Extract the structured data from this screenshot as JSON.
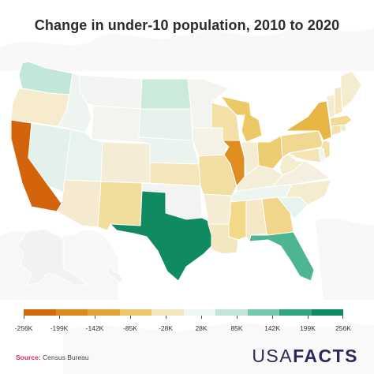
{
  "title": "Change in under-10 population, 2010 to 2020",
  "legend": {
    "ticks": [
      "-256K",
      "-199K",
      "-142K",
      "-85K",
      "-28K",
      "28K",
      "85K",
      "142K",
      "199K",
      "256K"
    ],
    "colors": [
      "#d06a0c",
      "#dc8a1c",
      "#e4a33a",
      "#edc66a",
      "#f4e6bc",
      "#eef6f2",
      "#bfe6d6",
      "#76c9a8",
      "#2fa67c",
      "#0f8a60"
    ]
  },
  "source": {
    "label": "Source:",
    "text": "Census Bureau"
  },
  "logo": {
    "part1": "USA",
    "part2": "FACTS"
  },
  "map_data": {
    "metric": "Change in under-10 population, 2010 to 2020",
    "scale_min": -256000,
    "scale_max": 256000,
    "color_scale": "diverging orange (decline) to green (growth)",
    "states": [
      {
        "state": "Washington",
        "color": "#c2e7d8"
      },
      {
        "state": "Oregon",
        "color": "#f6ebcd"
      },
      {
        "state": "California",
        "color": "#d4640c"
      },
      {
        "state": "Nevada",
        "color": "#e2f1ea"
      },
      {
        "state": "Idaho",
        "color": "#eef4ef"
      },
      {
        "state": "Montana",
        "color": "#f2f5f2"
      },
      {
        "state": "Wyoming",
        "color": "#f3f3ef"
      },
      {
        "state": "Utah",
        "color": "#e9f3ee"
      },
      {
        "state": "Arizona",
        "color": "#f5ead0"
      },
      {
        "state": "Colorado",
        "color": "#f4ecd4"
      },
      {
        "state": "New Mexico",
        "color": "#f1dd9c"
      },
      {
        "state": "North Dakota",
        "color": "#cbead9"
      },
      {
        "state": "South Dakota",
        "color": "#e7f2ec"
      },
      {
        "state": "Nebraska",
        "color": "#ebf3ee"
      },
      {
        "state": "Kansas",
        "color": "#f4e6bb"
      },
      {
        "state": "Oklahoma",
        "color": "#f2f4f1"
      },
      {
        "state": "Texas",
        "color": "#108a60"
      },
      {
        "state": "Minnesota",
        "color": "#f3f3f0"
      },
      {
        "state": "Iowa",
        "color": "#f4f1e6"
      },
      {
        "state": "Missouri",
        "color": "#f1dea2"
      },
      {
        "state": "Arkansas",
        "color": "#f5ecd3"
      },
      {
        "state": "Louisiana",
        "color": "#f3e7c2"
      },
      {
        "state": "Wisconsin",
        "color": "#f3e1a8"
      },
      {
        "state": "Illinois",
        "color": "#df8d1d"
      },
      {
        "state": "Michigan",
        "color": "#ecc966"
      },
      {
        "state": "Indiana",
        "color": "#f5ecd2"
      },
      {
        "state": "Ohio",
        "color": "#eecd72"
      },
      {
        "state": "Kentucky",
        "color": "#f4edd7"
      },
      {
        "state": "Tennessee",
        "color": "#eef5f1"
      },
      {
        "state": "Mississippi",
        "color": "#f2d989"
      },
      {
        "state": "Alabama",
        "color": "#f4e8c6"
      },
      {
        "state": "Georgia",
        "color": "#f0d58a"
      },
      {
        "state": "Florida",
        "color": "#4db58f"
      },
      {
        "state": "South Carolina",
        "color": "#e7f3ed"
      },
      {
        "state": "North Carolina",
        "color": "#f5ebcf"
      },
      {
        "state": "Virginia",
        "color": "#f4efde"
      },
      {
        "state": "West Virginia",
        "color": "#f5ecd0"
      },
      {
        "state": "Pennsylvania",
        "color": "#f1d890"
      },
      {
        "state": "New York",
        "color": "#e8b443"
      },
      {
        "state": "New Jersey",
        "color": "#f3dea3"
      },
      {
        "state": "Maryland",
        "color": "#f4e5b8"
      },
      {
        "state": "Delaware",
        "color": "#f3f3f0"
      },
      {
        "state": "Connecticut",
        "color": "#f3e2ac"
      },
      {
        "state": "Rhode Island",
        "color": "#f4e8c4"
      },
      {
        "state": "Massachusetts",
        "color": "#f1d993"
      },
      {
        "state": "Vermont",
        "color": "#f5ebcf"
      },
      {
        "state": "New Hampshire",
        "color": "#f4e6bd"
      },
      {
        "state": "Maine",
        "color": "#f5ebcf"
      },
      {
        "state": "Alaska",
        "color": "#f2f2f2"
      },
      {
        "state": "Hawaii",
        "color": "#f2f2f2"
      }
    ]
  }
}
